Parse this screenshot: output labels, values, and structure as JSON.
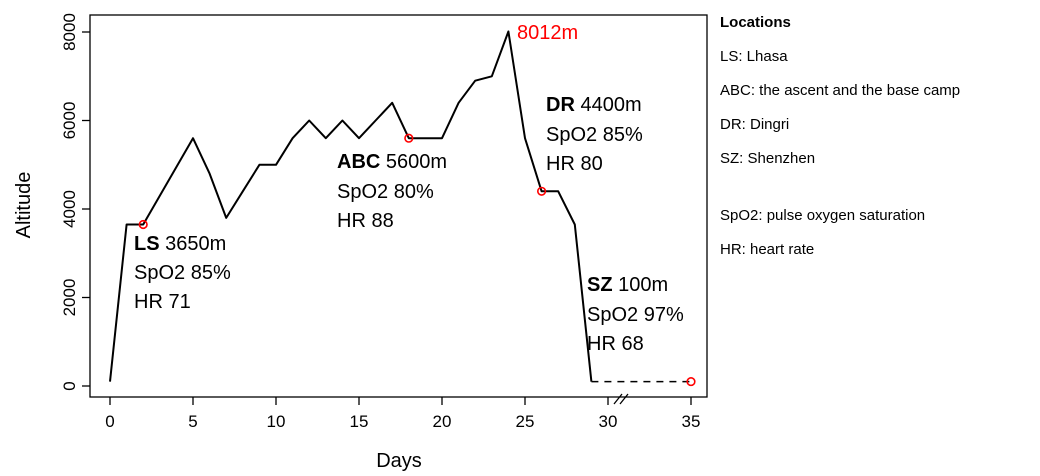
{
  "chart_data": {
    "type": "line",
    "xlabel": "Days",
    "ylabel": "Altitude",
    "xlim": [
      0,
      35
    ],
    "ylim": [
      0,
      8000
    ],
    "x_ticks": [
      "0",
      "5",
      "10",
      "15",
      "20",
      "25",
      "30",
      "35"
    ],
    "y_ticks": [
      "0",
      "2000",
      "4000",
      "6000",
      "8000"
    ],
    "axis_break": "30",
    "series": [
      {
        "x": [
          0,
          1,
          2,
          3,
          4,
          5,
          6,
          7,
          8,
          9,
          10,
          11,
          12,
          13,
          14,
          15,
          16,
          17,
          18,
          19,
          20,
          21,
          22,
          23,
          24,
          25,
          26,
          27,
          28,
          29
        ],
        "y": [
          100,
          3650,
          3650,
          4300,
          4950,
          5600,
          4800,
          3800,
          4400,
          5000,
          5000,
          5600,
          6000,
          5600,
          6000,
          5600,
          6000,
          6400,
          5600,
          5600,
          5600,
          6400,
          6900,
          7000,
          8012,
          5600,
          4400,
          4400,
          3650,
          100
        ]
      }
    ],
    "dashed_segment": {
      "x": [
        29,
        35
      ],
      "y": [
        100,
        100
      ]
    },
    "markers": [
      {
        "x": 2,
        "y": 3650
      },
      {
        "x": 18,
        "y": 5600
      },
      {
        "x": 26,
        "y": 4400
      },
      {
        "x": 35,
        "y": 100
      }
    ],
    "peak_label": {
      "text": "8012m",
      "color": "#ff0000"
    },
    "annotations": [
      {
        "code": "LS",
        "altitude": "3650m",
        "spo2": "SpO2 85%",
        "hr": "HR 71"
      },
      {
        "code": "ABC",
        "altitude": "5600m",
        "spo2": "SpO2 80%",
        "hr": "HR 88"
      },
      {
        "code": "DR",
        "altitude": "4400m",
        "spo2": "SpO2 85%",
        "hr": "HR 80"
      },
      {
        "code": "SZ",
        "altitude": "100m",
        "spo2": "SpO2 97%",
        "hr": "HR 68"
      }
    ],
    "colors": {
      "line": "#000000",
      "marker": "#ff0000"
    }
  },
  "legend": {
    "title": "Locations",
    "locations": [
      "LS: Lhasa",
      "ABC: the ascent and the base camp",
      "DR: Dingri",
      "SZ: Shenzhen"
    ],
    "abbreviations": [
      "SpO2: pulse oxygen saturation",
      "HR: heart rate"
    ]
  }
}
